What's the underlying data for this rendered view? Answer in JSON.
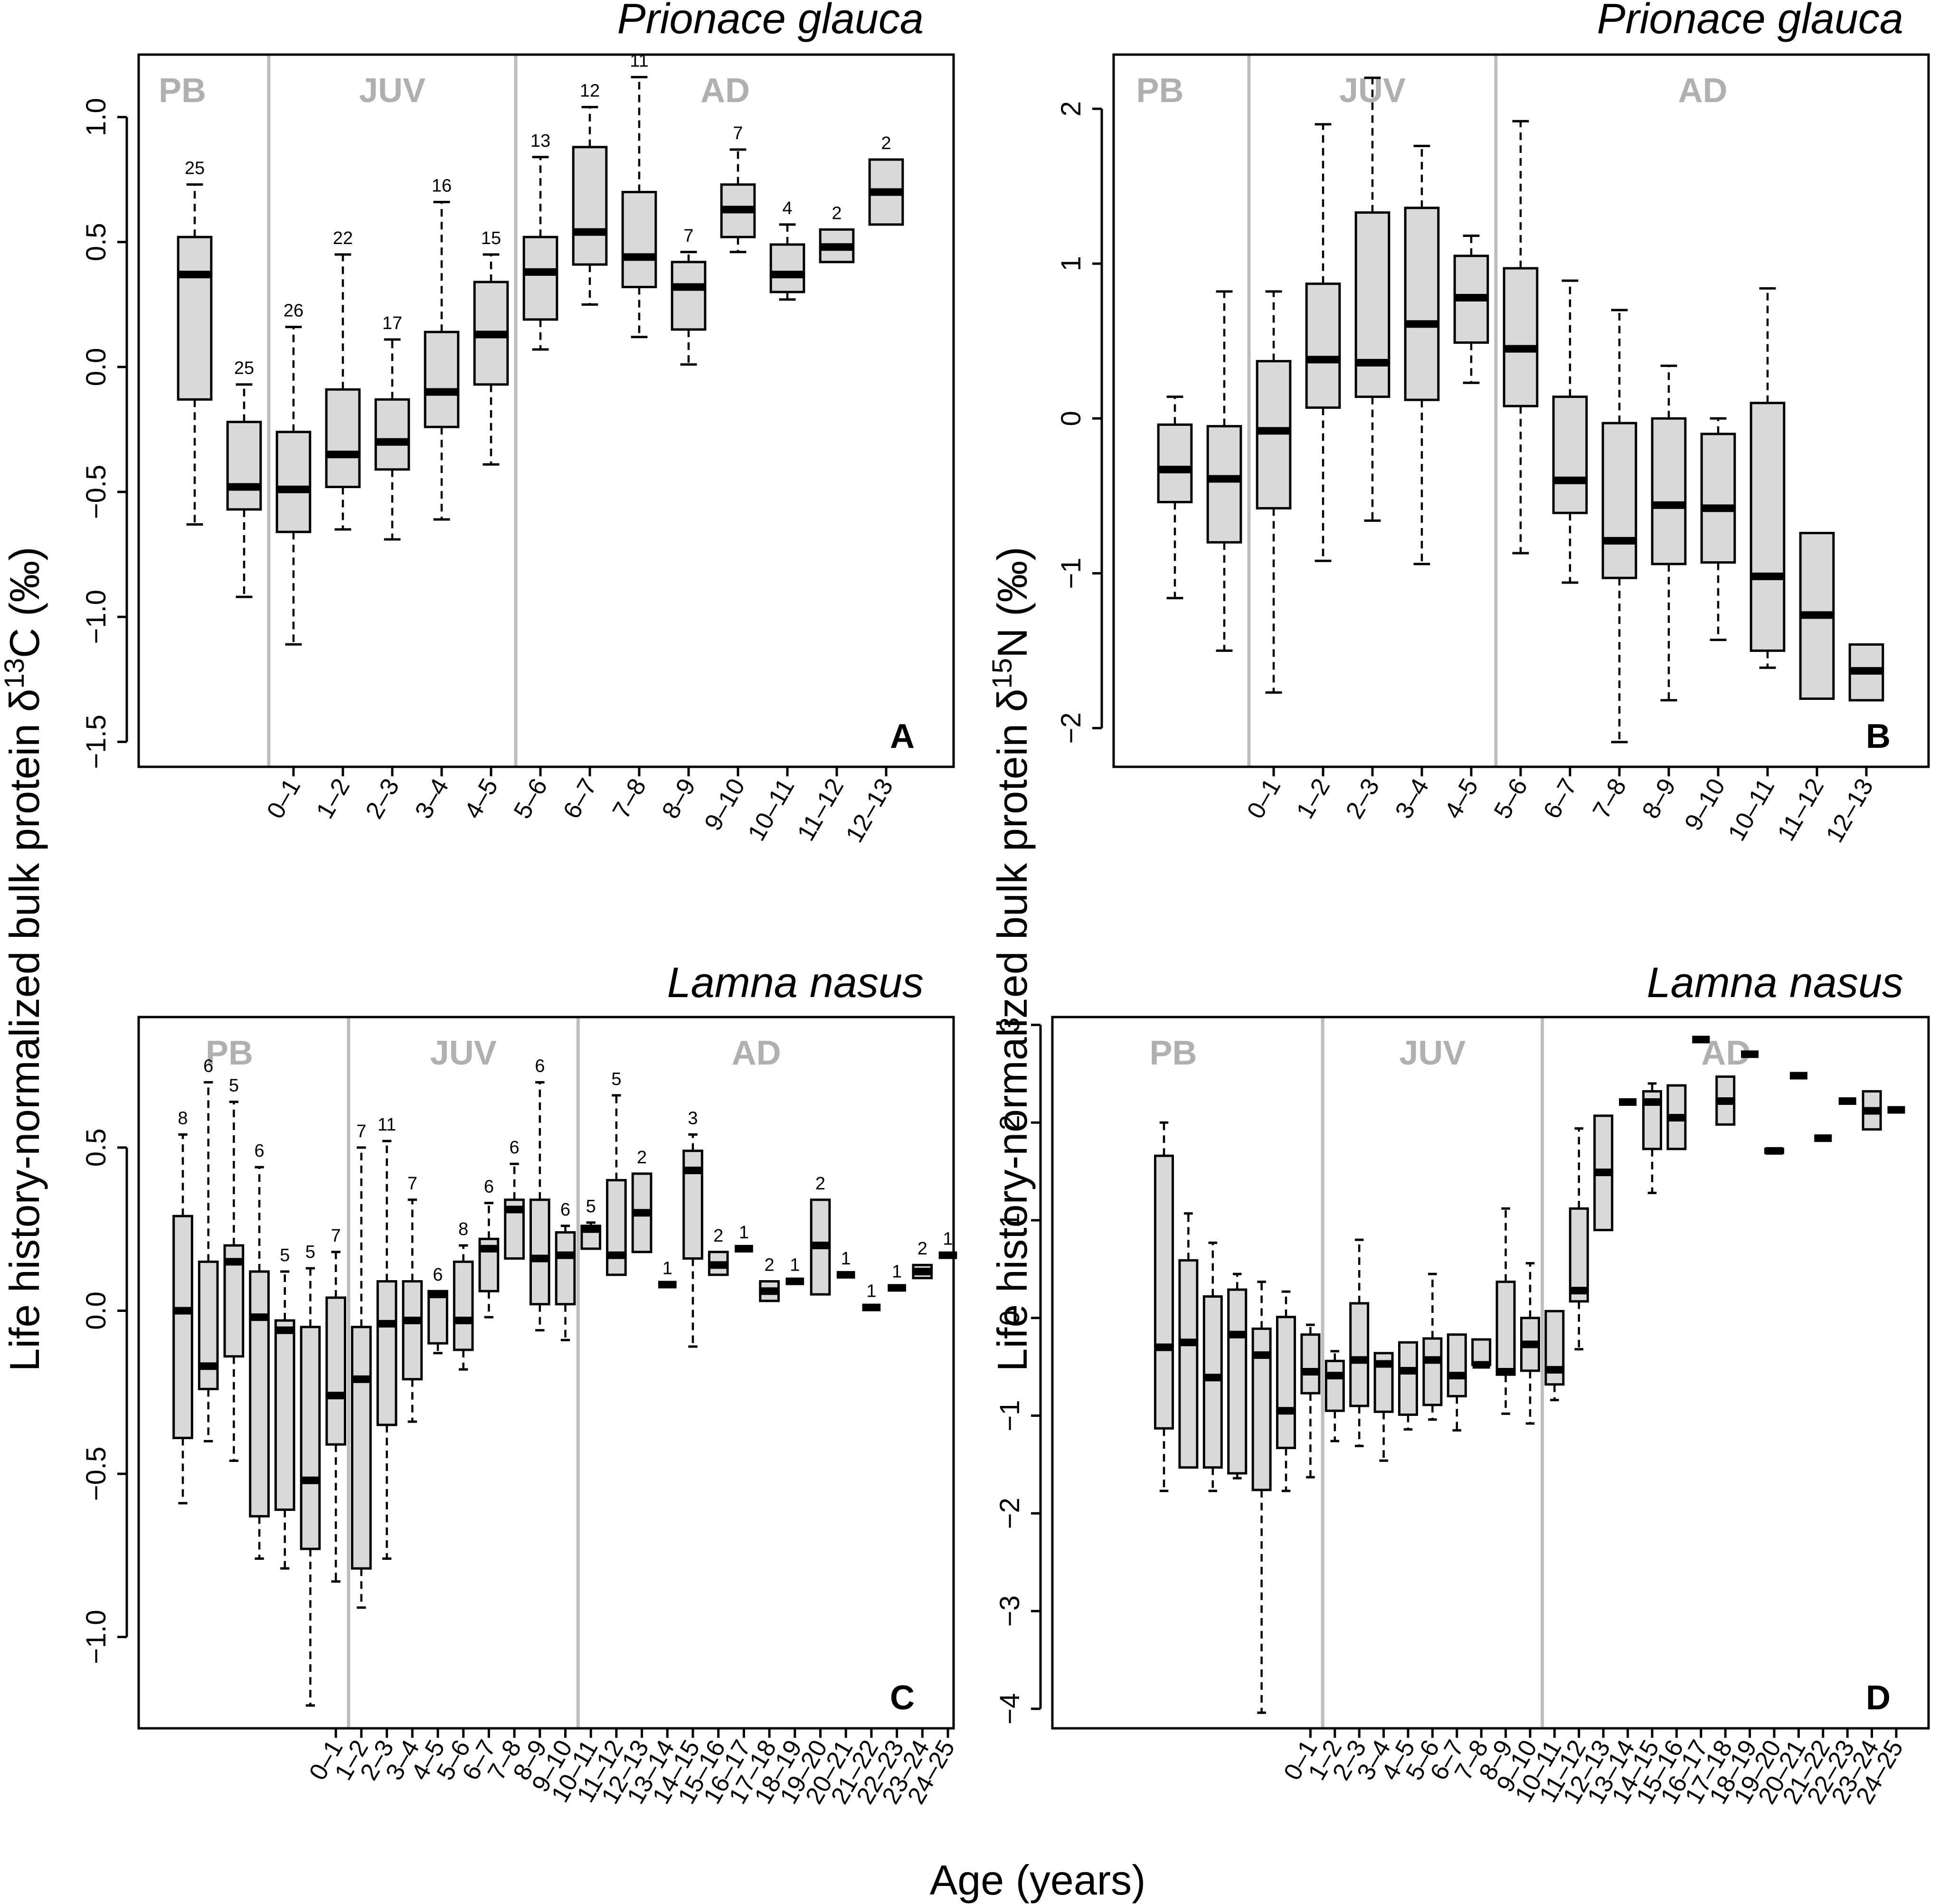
{
  "figure": {
    "ylabel_left": "Life history-normalized bulk protein δ13C (‰)",
    "ylabel_right": "Life history-normalized bulk protein δ15N (‰)",
    "xlabel": "Age (years)",
    "stage_labels": [
      "PB",
      "JUV",
      "AD"
    ]
  },
  "chart_data": [
    {
      "id": "A",
      "type": "boxplot",
      "title": "Prionace glauca",
      "panel_letter": "A",
      "ylim": [
        -1.6,
        1.25
      ],
      "yticks": [
        -1.5,
        -1.0,
        -0.5,
        0.0,
        0.5,
        1.0
      ],
      "ytick_labels": [
        "−1.5",
        "−1.0",
        "−0.5",
        "0.0",
        "0.5",
        "1.0"
      ],
      "stage_dividers_after_box": [
        2,
        7
      ],
      "boxes": [
        {
          "label": "",
          "n": "25",
          "wlo": -0.63,
          "q1": -0.13,
          "med": 0.37,
          "q3": 0.52,
          "whi": 0.73
        },
        {
          "label": "",
          "n": "25",
          "wlo": -0.92,
          "q1": -0.57,
          "med": -0.48,
          "q3": -0.22,
          "whi": -0.07
        },
        {
          "label": "0–1",
          "n": "26",
          "wlo": -1.11,
          "q1": -0.66,
          "med": -0.49,
          "q3": -0.26,
          "whi": 0.16
        },
        {
          "label": "1–2",
          "n": "22",
          "wlo": -0.65,
          "q1": -0.48,
          "med": -0.35,
          "q3": -0.09,
          "whi": 0.45
        },
        {
          "label": "2–3",
          "n": "17",
          "wlo": -0.69,
          "q1": -0.41,
          "med": -0.3,
          "q3": -0.13,
          "whi": 0.11
        },
        {
          "label": "3–4",
          "n": "16",
          "wlo": -0.61,
          "q1": -0.24,
          "med": -0.1,
          "q3": 0.14,
          "whi": 0.66
        },
        {
          "label": "4–5",
          "n": "15",
          "wlo": -0.39,
          "q1": -0.07,
          "med": 0.13,
          "q3": 0.34,
          "whi": 0.45
        },
        {
          "label": "5–6",
          "n": "13",
          "wlo": 0.07,
          "q1": 0.19,
          "med": 0.38,
          "q3": 0.52,
          "whi": 0.84
        },
        {
          "label": "6–7",
          "n": "12",
          "wlo": 0.25,
          "q1": 0.41,
          "med": 0.54,
          "q3": 0.88,
          "whi": 1.04
        },
        {
          "label": "7–8",
          "n": "11",
          "wlo": 0.12,
          "q1": 0.32,
          "med": 0.44,
          "q3": 0.7,
          "whi": 1.16
        },
        {
          "label": "8–9",
          "n": "7",
          "wlo": 0.01,
          "q1": 0.15,
          "med": 0.32,
          "q3": 0.42,
          "whi": 0.46
        },
        {
          "label": "9–10",
          "n": "7",
          "wlo": 0.46,
          "q1": 0.52,
          "med": 0.63,
          "q3": 0.73,
          "whi": 0.87
        },
        {
          "label": "10–11",
          "n": "4",
          "wlo": 0.27,
          "q1": 0.3,
          "med": 0.37,
          "q3": 0.49,
          "whi": 0.57
        },
        {
          "label": "11–12",
          "n": "2",
          "wlo": 0.42,
          "q1": 0.42,
          "med": 0.48,
          "q3": 0.55,
          "whi": 0.55
        },
        {
          "label": "12–13",
          "n": "2",
          "wlo": 0.57,
          "q1": 0.57,
          "med": 0.7,
          "q3": 0.83,
          "whi": 0.83
        }
      ]
    },
    {
      "id": "B",
      "type": "boxplot",
      "title": "Prionace glauca",
      "panel_letter": "B",
      "ylim": [
        -2.25,
        2.35
      ],
      "yticks": [
        -2,
        -1,
        0,
        1,
        2
      ],
      "ytick_labels": [
        "−2",
        "−1",
        "0",
        "1",
        "2"
      ],
      "stage_dividers_after_box": [
        2,
        7
      ],
      "boxes": [
        {
          "label": "",
          "n": "",
          "wlo": -1.16,
          "q1": -0.54,
          "med": -0.33,
          "q3": -0.04,
          "whi": 0.14
        },
        {
          "label": "",
          "n": "",
          "wlo": -1.5,
          "q1": -0.8,
          "med": -0.39,
          "q3": -0.05,
          "whi": 0.82
        },
        {
          "label": "0–1",
          "n": "",
          "wlo": -1.77,
          "q1": -0.58,
          "med": -0.08,
          "q3": 0.37,
          "whi": 0.82
        },
        {
          "label": "1–2",
          "n": "",
          "wlo": -0.92,
          "q1": 0.07,
          "med": 0.38,
          "q3": 0.87,
          "whi": 1.9
        },
        {
          "label": "2–3",
          "n": "",
          "wlo": -0.66,
          "q1": 0.14,
          "med": 0.36,
          "q3": 1.33,
          "whi": 2.2
        },
        {
          "label": "3–4",
          "n": "",
          "wlo": -0.94,
          "q1": 0.12,
          "med": 0.61,
          "q3": 1.36,
          "whi": 1.76
        },
        {
          "label": "4–5",
          "n": "",
          "wlo": 0.23,
          "q1": 0.49,
          "med": 0.78,
          "q3": 1.05,
          "whi": 1.18
        },
        {
          "label": "5–6",
          "n": "",
          "wlo": -0.87,
          "q1": 0.08,
          "med": 0.45,
          "q3": 0.97,
          "whi": 1.92
        },
        {
          "label": "6–7",
          "n": "",
          "wlo": -1.06,
          "q1": -0.61,
          "med": -0.4,
          "q3": 0.14,
          "whi": 0.89
        },
        {
          "label": "7–8",
          "n": "",
          "wlo": -2.09,
          "q1": -1.03,
          "med": -0.79,
          "q3": -0.03,
          "whi": 0.7
        },
        {
          "label": "8–9",
          "n": "",
          "wlo": -1.82,
          "q1": -0.94,
          "med": -0.56,
          "q3": 0.0,
          "whi": 0.34
        },
        {
          "label": "9–10",
          "n": "",
          "wlo": -1.43,
          "q1": -0.93,
          "med": -0.58,
          "q3": -0.1,
          "whi": 0.0
        },
        {
          "label": "10–11",
          "n": "",
          "wlo": -1.61,
          "q1": -1.5,
          "med": -1.02,
          "q3": 0.1,
          "whi": 0.84
        },
        {
          "label": "11–12",
          "n": "",
          "wlo": -1.81,
          "q1": -1.81,
          "med": -1.27,
          "q3": -0.74,
          "whi": -0.74
        },
        {
          "label": "12–13",
          "n": "",
          "wlo": -1.82,
          "q1": -1.82,
          "med": -1.63,
          "q3": -1.46,
          "whi": -1.46
        }
      ]
    },
    {
      "id": "C",
      "type": "boxplot",
      "title": "Lamna nasus",
      "panel_letter": "C",
      "ylim": [
        -1.28,
        0.9
      ],
      "yticks": [
        -1.0,
        -0.5,
        0.0,
        0.5
      ],
      "ytick_labels": [
        "−1.0",
        "−0.5",
        "0.0",
        "0.5"
      ],
      "stage_dividers_after_box": [
        7,
        16
      ],
      "boxes": [
        {
          "label": "",
          "n": "8",
          "wlo": -0.59,
          "q1": -0.39,
          "med": 0.0,
          "q3": 0.29,
          "whi": 0.54
        },
        {
          "label": "",
          "n": "6",
          "wlo": -0.4,
          "q1": -0.24,
          "med": -0.17,
          "q3": 0.15,
          "whi": 0.7
        },
        {
          "label": "",
          "n": "5",
          "wlo": -0.46,
          "q1": -0.14,
          "med": 0.15,
          "q3": 0.2,
          "whi": 0.64
        },
        {
          "label": "",
          "n": "6",
          "wlo": -0.76,
          "q1": -0.63,
          "med": -0.02,
          "q3": 0.12,
          "whi": 0.44
        },
        {
          "label": "",
          "n": "5",
          "wlo": -0.79,
          "q1": -0.61,
          "med": -0.06,
          "q3": -0.03,
          "whi": 0.12
        },
        {
          "label": "",
          "n": "5",
          "wlo": -1.21,
          "q1": -0.73,
          "med": -0.52,
          "q3": -0.05,
          "whi": 0.13
        },
        {
          "label": "0–1",
          "n": "7",
          "wlo": -0.83,
          "q1": -0.41,
          "med": -0.26,
          "q3": 0.04,
          "whi": 0.18
        },
        {
          "label": "1–2",
          "n": "7",
          "wlo": -0.91,
          "q1": -0.79,
          "med": -0.21,
          "q3": -0.05,
          "whi": 0.5
        },
        {
          "label": "2–3",
          "n": "11",
          "wlo": -0.76,
          "q1": -0.35,
          "med": -0.04,
          "q3": 0.09,
          "whi": 0.52
        },
        {
          "label": "3–4",
          "n": "7",
          "wlo": -0.34,
          "q1": -0.21,
          "med": -0.03,
          "q3": 0.09,
          "whi": 0.34
        },
        {
          "label": "4–5",
          "n": "6",
          "wlo": -0.13,
          "q1": -0.1,
          "med": 0.05,
          "q3": 0.06,
          "whi": 0.06
        },
        {
          "label": "5–6",
          "n": "8",
          "wlo": -0.18,
          "q1": -0.12,
          "med": -0.03,
          "q3": 0.15,
          "whi": 0.2
        },
        {
          "label": "6–7",
          "n": "6",
          "wlo": -0.02,
          "q1": 0.06,
          "med": 0.19,
          "q3": 0.22,
          "whi": 0.33
        },
        {
          "label": "7–8",
          "n": "6",
          "wlo": 0.16,
          "q1": 0.16,
          "med": 0.31,
          "q3": 0.34,
          "whi": 0.45
        },
        {
          "label": "8–9",
          "n": "6",
          "wlo": -0.06,
          "q1": 0.02,
          "med": 0.16,
          "q3": 0.34,
          "whi": 0.7
        },
        {
          "label": "9–10",
          "n": "6",
          "wlo": -0.09,
          "q1": 0.02,
          "med": 0.17,
          "q3": 0.24,
          "whi": 0.26
        },
        {
          "label": "10–11",
          "n": "5",
          "wlo": 0.19,
          "q1": 0.19,
          "med": 0.25,
          "q3": 0.26,
          "whi": 0.27
        },
        {
          "label": "11–12",
          "n": "5",
          "wlo": 0.11,
          "q1": 0.11,
          "med": 0.17,
          "q3": 0.4,
          "whi": 0.66
        },
        {
          "label": "12–13",
          "n": "2",
          "wlo": 0.18,
          "q1": 0.18,
          "med": 0.3,
          "q3": 0.42,
          "whi": 0.42
        },
        {
          "label": "13–14",
          "n": "1",
          "wlo": 0.08,
          "q1": 0.08,
          "med": 0.08,
          "q3": 0.08,
          "whi": 0.08
        },
        {
          "label": "14–15",
          "n": "3",
          "wlo": -0.11,
          "q1": 0.16,
          "med": 0.43,
          "q3": 0.49,
          "whi": 0.54
        },
        {
          "label": "15–16",
          "n": "2",
          "wlo": 0.11,
          "q1": 0.11,
          "med": 0.14,
          "q3": 0.18,
          "whi": 0.18
        },
        {
          "label": "16–17",
          "n": "1",
          "wlo": 0.19,
          "q1": 0.19,
          "med": 0.19,
          "q3": 0.19,
          "whi": 0.19
        },
        {
          "label": "17–18",
          "n": "2",
          "wlo": 0.03,
          "q1": 0.03,
          "med": 0.06,
          "q3": 0.09,
          "whi": 0.09
        },
        {
          "label": "18–19",
          "n": "1",
          "wlo": 0.09,
          "q1": 0.09,
          "med": 0.09,
          "q3": 0.09,
          "whi": 0.09
        },
        {
          "label": "19–20",
          "n": "2",
          "wlo": 0.05,
          "q1": 0.05,
          "med": 0.2,
          "q3": 0.34,
          "whi": 0.34
        },
        {
          "label": "20–21",
          "n": "1",
          "wlo": 0.11,
          "q1": 0.11,
          "med": 0.11,
          "q3": 0.11,
          "whi": 0.11
        },
        {
          "label": "21–22",
          "n": "1",
          "wlo": 0.01,
          "q1": 0.01,
          "med": 0.01,
          "q3": 0.01,
          "whi": 0.01
        },
        {
          "label": "22–23",
          "n": "1",
          "wlo": 0.07,
          "q1": 0.07,
          "med": 0.07,
          "q3": 0.07,
          "whi": 0.07
        },
        {
          "label": "23–24",
          "n": "2",
          "wlo": 0.1,
          "q1": 0.1,
          "med": 0.12,
          "q3": 0.14,
          "whi": 0.14
        },
        {
          "label": "24–25",
          "n": "1",
          "wlo": 0.17,
          "q1": 0.17,
          "med": 0.17,
          "q3": 0.17,
          "whi": 0.17
        }
      ]
    },
    {
      "id": "D",
      "type": "boxplot",
      "title": "Lamna nasus",
      "panel_letter": "D",
      "ylim": [
        -4.2,
        3.08
      ],
      "yticks": [
        -4,
        -3,
        -2,
        -1,
        0,
        1,
        2,
        3
      ],
      "ytick_labels": [
        "−4",
        "−3",
        "−2",
        "−1",
        "0",
        "1",
        "2",
        "3"
      ],
      "stage_dividers_after_box": [
        7,
        16
      ],
      "boxes": [
        {
          "label": "",
          "n": "",
          "wlo": -1.77,
          "q1": -1.13,
          "med": -0.3,
          "q3": 1.66,
          "whi": 2.0
        },
        {
          "label": "",
          "n": "",
          "wlo": -1.53,
          "q1": -1.53,
          "med": -0.25,
          "q3": 0.59,
          "whi": 1.07
        },
        {
          "label": "",
          "n": "",
          "wlo": -1.77,
          "q1": -1.53,
          "med": -0.61,
          "q3": 0.22,
          "whi": 0.77
        },
        {
          "label": "",
          "n": "",
          "wlo": -1.64,
          "q1": -1.59,
          "med": -0.17,
          "q3": 0.29,
          "whi": 0.45
        },
        {
          "label": "",
          "n": "",
          "wlo": -4.04,
          "q1": -1.76,
          "med": -0.38,
          "q3": -0.11,
          "whi": 0.37
        },
        {
          "label": "",
          "n": "",
          "wlo": -1.77,
          "q1": -1.33,
          "med": -0.95,
          "q3": 0.01,
          "whi": 0.27
        },
        {
          "label": "0–1",
          "n": "",
          "wlo": -1.63,
          "q1": -0.77,
          "med": -0.55,
          "q3": -0.17,
          "whi": -0.07
        },
        {
          "label": "1–2",
          "n": "",
          "wlo": -1.26,
          "q1": -0.95,
          "med": -0.59,
          "q3": -0.44,
          "whi": -0.34
        },
        {
          "label": "2–3",
          "n": "",
          "wlo": -1.31,
          "q1": -0.9,
          "med": -0.43,
          "q3": 0.15,
          "whi": 0.8
        },
        {
          "label": "3–4",
          "n": "",
          "wlo": -1.46,
          "q1": -0.96,
          "med": -0.47,
          "q3": -0.36,
          "whi": -0.36
        },
        {
          "label": "4–5",
          "n": "",
          "wlo": -1.14,
          "q1": -0.99,
          "med": -0.54,
          "q3": -0.25,
          "whi": -0.25
        },
        {
          "label": "5–6",
          "n": "",
          "wlo": -1.04,
          "q1": -0.89,
          "med": -0.43,
          "q3": -0.21,
          "whi": 0.45
        },
        {
          "label": "6–7",
          "n": "",
          "wlo": -1.15,
          "q1": -0.8,
          "med": -0.59,
          "q3": -0.17,
          "whi": -0.17
        },
        {
          "label": "7–8",
          "n": "",
          "wlo": -0.48,
          "q1": -0.48,
          "med": -0.48,
          "q3": -0.22,
          "whi": -0.22
        },
        {
          "label": "8–9",
          "n": "",
          "wlo": -0.98,
          "q1": -0.58,
          "med": -0.55,
          "q3": 0.37,
          "whi": 1.12
        },
        {
          "label": "9–10",
          "n": "",
          "wlo": -1.08,
          "q1": -0.54,
          "med": -0.27,
          "q3": 0.0,
          "whi": 0.56
        },
        {
          "label": "10–11",
          "n": "",
          "wlo": -0.84,
          "q1": -0.68,
          "med": -0.53,
          "q3": 0.07,
          "whi": 0.07
        },
        {
          "label": "11–12",
          "n": "",
          "wlo": -0.32,
          "q1": 0.17,
          "med": 0.28,
          "q3": 1.12,
          "whi": 1.94
        },
        {
          "label": "12–13",
          "n": "",
          "wlo": 0.9,
          "q1": 0.9,
          "med": 1.49,
          "q3": 2.07,
          "whi": 2.07
        },
        {
          "label": "13–14",
          "n": "",
          "wlo": 2.21,
          "q1": 2.21,
          "med": 2.21,
          "q3": 2.21,
          "whi": 2.21
        },
        {
          "label": "14–15",
          "n": "",
          "wlo": 1.28,
          "q1": 1.73,
          "med": 2.21,
          "q3": 2.32,
          "whi": 2.4
        },
        {
          "label": "15–16",
          "n": "",
          "wlo": 1.73,
          "q1": 1.73,
          "med": 2.05,
          "q3": 2.38,
          "whi": 2.38
        },
        {
          "label": "16–17",
          "n": "",
          "wlo": 2.85,
          "q1": 2.85,
          "med": 2.85,
          "q3": 2.85,
          "whi": 2.85
        },
        {
          "label": "17–18",
          "n": "",
          "wlo": 1.98,
          "q1": 1.98,
          "med": 2.22,
          "q3": 2.47,
          "whi": 2.47
        },
        {
          "label": "18–19",
          "n": "",
          "wlo": 2.7,
          "q1": 2.7,
          "med": 2.7,
          "q3": 2.7,
          "whi": 2.7
        },
        {
          "label": "19–20",
          "n": "",
          "wlo": 1.69,
          "q1": 1.69,
          "med": 1.71,
          "q3": 1.73,
          "whi": 1.73
        },
        {
          "label": "20–21",
          "n": "",
          "wlo": 2.48,
          "q1": 2.48,
          "med": 2.48,
          "q3": 2.48,
          "whi": 2.48
        },
        {
          "label": "21–22",
          "n": "",
          "wlo": 1.84,
          "q1": 1.84,
          "med": 1.84,
          "q3": 1.84,
          "whi": 1.84
        },
        {
          "label": "22–23",
          "n": "",
          "wlo": 2.22,
          "q1": 2.22,
          "med": 2.22,
          "q3": 2.22,
          "whi": 2.22
        },
        {
          "label": "23–24",
          "n": "",
          "wlo": 1.93,
          "q1": 1.93,
          "med": 2.12,
          "q3": 2.32,
          "whi": 2.32
        },
        {
          "label": "24–25",
          "n": "",
          "wlo": 2.13,
          "q1": 2.13,
          "med": 2.13,
          "q3": 2.13,
          "whi": 2.13
        }
      ]
    }
  ]
}
